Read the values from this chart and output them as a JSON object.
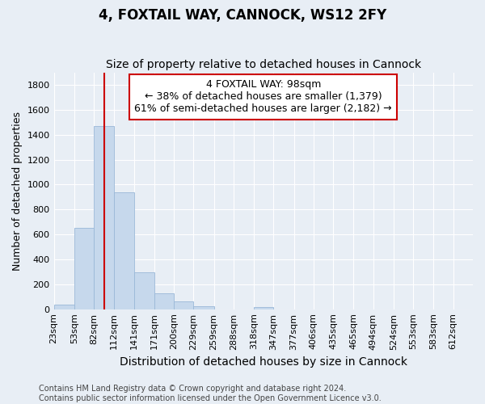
{
  "title": "4, FOXTAIL WAY, CANNOCK, WS12 2FY",
  "subtitle": "Size of property relative to detached houses in Cannock",
  "xlabel": "Distribution of detached houses by size in Cannock",
  "ylabel": "Number of detached properties",
  "property_size": 98,
  "annotation_line1": "4 FOXTAIL WAY: 98sqm",
  "annotation_line2": "← 38% of detached houses are smaller (1,379)",
  "annotation_line3": "61% of semi-detached houses are larger (2,182) →",
  "footer_line1": "Contains HM Land Registry data © Crown copyright and database right 2024.",
  "footer_line2": "Contains public sector information licensed under the Open Government Licence v3.0.",
  "bar_color": "#c6d8ec",
  "bar_edge_color": "#9ab8d8",
  "vline_color": "#cc0000",
  "annotation_box_color": "#cc0000",
  "background_color": "#e8eef5",
  "plot_bg_color": "#e8eef5",
  "bin_edges": [
    23,
    53,
    82,
    112,
    141,
    171,
    200,
    229,
    259,
    288,
    318,
    347,
    377,
    406,
    435,
    465,
    494,
    524,
    553,
    583,
    612
  ],
  "bin_labels": [
    "23sqm",
    "53sqm",
    "82sqm",
    "112sqm",
    "141sqm",
    "171sqm",
    "200sqm",
    "229sqm",
    "259sqm",
    "288sqm",
    "318sqm",
    "347sqm",
    "377sqm",
    "406sqm",
    "435sqm",
    "465sqm",
    "494sqm",
    "524sqm",
    "553sqm",
    "583sqm",
    "612sqm"
  ],
  "values": [
    40,
    650,
    1470,
    940,
    295,
    130,
    65,
    25,
    0,
    0,
    15,
    0,
    0,
    0,
    0,
    0,
    0,
    0,
    0,
    0
  ],
  "ylim": [
    0,
    1900
  ],
  "yticks": [
    0,
    200,
    400,
    600,
    800,
    1000,
    1200,
    1400,
    1600,
    1800
  ],
  "title_fontsize": 12,
  "subtitle_fontsize": 10,
  "xlabel_fontsize": 10,
  "ylabel_fontsize": 9,
  "tick_fontsize": 8,
  "annotation_fontsize": 9,
  "footer_fontsize": 7
}
